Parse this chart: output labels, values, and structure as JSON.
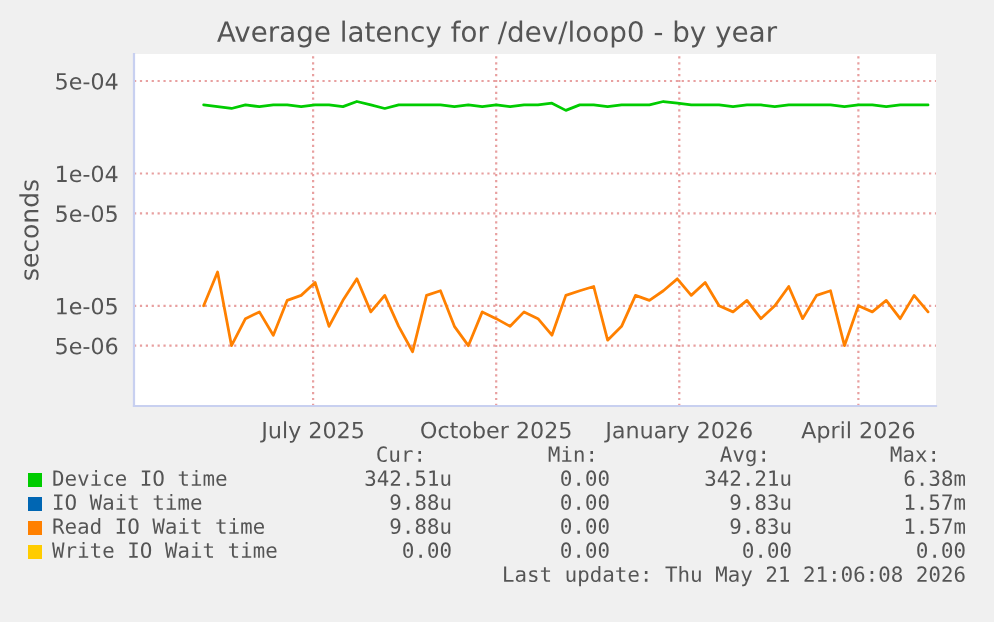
{
  "chart_data": {
    "type": "line",
    "title": "Average latency for /dev/loop0 - by year",
    "ylabel": "seconds",
    "log": "y",
    "x": [
      "2025-05-22",
      "2025-05-29",
      "2025-06-05",
      "2025-06-12",
      "2025-06-19",
      "2025-06-26",
      "2025-07-03",
      "2025-07-10",
      "2025-07-17",
      "2025-07-24",
      "2025-07-31",
      "2025-08-07",
      "2025-08-14",
      "2025-08-21",
      "2025-08-28",
      "2025-09-04",
      "2025-09-11",
      "2025-09-18",
      "2025-09-25",
      "2025-10-02",
      "2025-10-09",
      "2025-10-16",
      "2025-10-23",
      "2025-10-30",
      "2025-11-06",
      "2025-11-13",
      "2025-11-20",
      "2025-11-27",
      "2025-12-04",
      "2025-12-11",
      "2025-12-18",
      "2025-12-25",
      "2026-01-01",
      "2026-01-08",
      "2026-01-15",
      "2026-01-22",
      "2026-01-29",
      "2026-02-05",
      "2026-02-12",
      "2026-02-19",
      "2026-02-26",
      "2026-03-05",
      "2026-03-12",
      "2026-03-19",
      "2026-03-26",
      "2026-04-02",
      "2026-04-09",
      "2026-04-16",
      "2026-04-23",
      "2026-04-30",
      "2026-05-07",
      "2026-05-14",
      "2026-05-21"
    ],
    "xlim": [
      "2025-04-17",
      "2026-05-25"
    ],
    "xticks": [
      {
        "value": "2025-07-16",
        "label": "July 2025"
      },
      {
        "value": "2025-10-16",
        "label": "October 2025"
      },
      {
        "value": "2026-01-16",
        "label": "January 2026"
      },
      {
        "value": "2026-04-16",
        "label": "April 2026"
      }
    ],
    "ylim": [
      1.75e-06,
      0.0008
    ],
    "yticks": [
      {
        "value": 5e-06,
        "label": "5e-06"
      },
      {
        "value": 1e-05,
        "label": "1e-05"
      },
      {
        "value": 5e-05,
        "label": "5e-05"
      },
      {
        "value": 0.0001,
        "label": "1e-04"
      },
      {
        "value": 0.0005,
        "label": "5e-04"
      }
    ],
    "grid": true,
    "legend": "bottom",
    "series": [
      {
        "name": "Device IO time",
        "color": "#00cc00",
        "values": [
          0.00033,
          0.00032,
          0.00031,
          0.00033,
          0.00032,
          0.00033,
          0.00033,
          0.00032,
          0.00033,
          0.00033,
          0.00032,
          0.00035,
          0.00033,
          0.00031,
          0.00033,
          0.00033,
          0.00033,
          0.00033,
          0.00032,
          0.00033,
          0.00032,
          0.00033,
          0.00032,
          0.00033,
          0.00033,
          0.00034,
          0.0003,
          0.00033,
          0.00033,
          0.00032,
          0.00033,
          0.00033,
          0.00033,
          0.00035,
          0.00034,
          0.00033,
          0.00033,
          0.00033,
          0.00032,
          0.00033,
          0.00033,
          0.00032,
          0.00033,
          0.00033,
          0.00033,
          0.00033,
          0.00032,
          0.00033,
          0.00033,
          0.00032,
          0.00033,
          0.00033,
          0.00033
        ]
      },
      {
        "name": "IO Wait time",
        "color": "#0066b3",
        "values": [
          null,
          null,
          null,
          null,
          null,
          null,
          null,
          null,
          null,
          null,
          null,
          null,
          null,
          null,
          null,
          null,
          null,
          null,
          null,
          null,
          null,
          null,
          null,
          null,
          null,
          null,
          null,
          null,
          null,
          null,
          null,
          null,
          null,
          null,
          null,
          null,
          null,
          null,
          null,
          null,
          null,
          null,
          null,
          null,
          null,
          null,
          null,
          null,
          null,
          null,
          null,
          null,
          null
        ]
      },
      {
        "name": "Read IO Wait time",
        "color": "#ff8000",
        "values": [
          1e-05,
          1.8e-05,
          5e-06,
          8e-06,
          9e-06,
          6e-06,
          1.1e-05,
          1.2e-05,
          1.5e-05,
          7e-06,
          1.1e-05,
          1.6e-05,
          9e-06,
          1.2e-05,
          7e-06,
          4.5e-06,
          1.2e-05,
          1.3e-05,
          7e-06,
          5e-06,
          9e-06,
          8e-06,
          7e-06,
          9e-06,
          8e-06,
          6e-06,
          1.2e-05,
          1.3e-05,
          1.4e-05,
          5.5e-06,
          7e-06,
          1.2e-05,
          1.1e-05,
          1.3e-05,
          1.6e-05,
          1.2e-05,
          1.5e-05,
          1e-05,
          9e-06,
          1.1e-05,
          8e-06,
          1e-05,
          1.4e-05,
          8e-06,
          1.2e-05,
          1.3e-05,
          5e-06,
          1e-05,
          9e-06,
          1.1e-05,
          8e-06,
          1.2e-05,
          9e-06
        ]
      },
      {
        "name": "Write IO Wait time",
        "color": "#ffcc00",
        "values": [
          null,
          null,
          null,
          null,
          null,
          null,
          null,
          null,
          null,
          null,
          null,
          null,
          null,
          null,
          null,
          null,
          null,
          null,
          null,
          null,
          null,
          null,
          null,
          null,
          null,
          null,
          null,
          null,
          null,
          null,
          null,
          null,
          null,
          null,
          null,
          null,
          null,
          null,
          null,
          null,
          null,
          null,
          null,
          null,
          null,
          null,
          null,
          null,
          null,
          null,
          null,
          null,
          null
        ]
      }
    ],
    "annotations": [
      "Cur:",
      "Min:",
      "Avg:",
      "Max:",
      "342.51u",
      "0.00",
      "342.21u",
      "6.38m",
      "9.88u",
      "0.00",
      "9.83u",
      "1.57m",
      "9.88u",
      "0.00",
      "9.83u",
      "1.57m",
      "0.00",
      "0.00",
      "0.00",
      "0.00",
      "Last update: Thu May 21 21:06:08 2026"
    ]
  }
}
